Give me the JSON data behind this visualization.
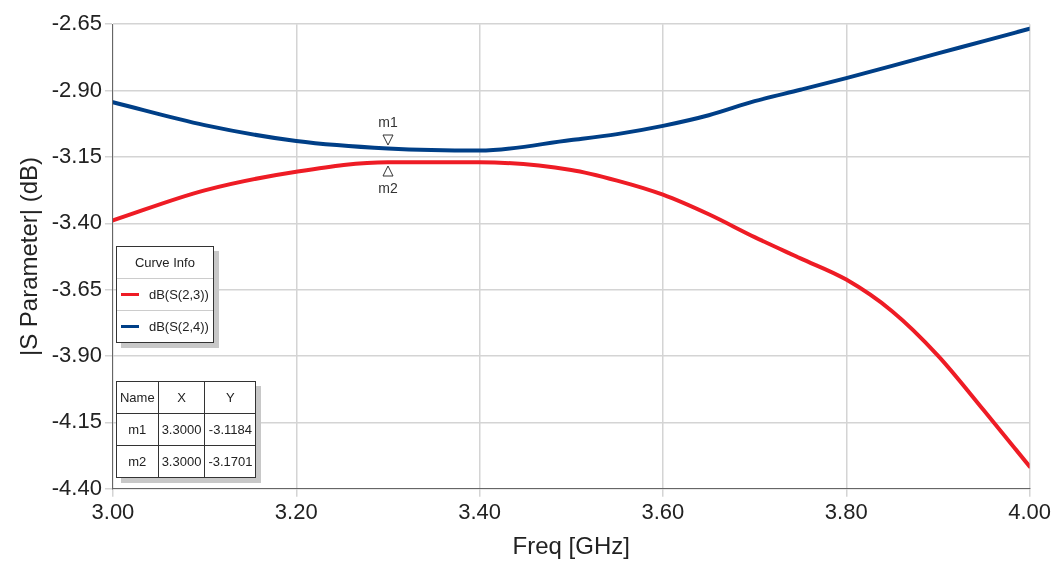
{
  "chart_data": {
    "type": "line",
    "xlabel": "Freq [GHz]",
    "ylabel": "|S Parameter| (dB)",
    "legend_title": "Curve Info",
    "legend": "left",
    "grid": true,
    "marker": "none",
    "line_style": "solid",
    "xlim": [
      3.0,
      4.0
    ],
    "xticks": [
      {
        "value": 3.0,
        "label": "3.00"
      },
      {
        "value": 3.2,
        "label": "3.20"
      },
      {
        "value": 3.4,
        "label": "3.40"
      },
      {
        "value": 3.6,
        "label": "3.60"
      },
      {
        "value": 3.8,
        "label": "3.80"
      },
      {
        "value": 4.0,
        "label": "4.00"
      }
    ],
    "ylim": [
      -4.4,
      -2.65
    ],
    "yticks": [
      -2.65,
      {
        "value": -2.9,
        "label": "-2.90"
      },
      -3.15,
      {
        "value": -3.4,
        "label": "-3.40"
      },
      -3.65,
      {
        "value": -3.9,
        "label": "-3.90"
      },
      -4.15,
      {
        "value": -4.4,
        "label": "-4.40"
      }
    ],
    "x": [
      3.0,
      3.1,
      3.2,
      3.3,
      3.4,
      3.5,
      3.55,
      3.6,
      3.65,
      3.7,
      3.75,
      3.8,
      3.85,
      3.9,
      3.95,
      4.0
    ],
    "series": [
      {
        "name": "dB(S(2,3))",
        "color": "#ee1c25",
        "values": [
          -3.389,
          -3.276,
          -3.206,
          -3.17,
          -3.17,
          -3.199,
          -3.239,
          -3.292,
          -3.366,
          -3.452,
          -3.532,
          -3.612,
          -3.731,
          -3.898,
          -4.104,
          -4.316
        ]
      },
      {
        "name": "dB(S(2,4))",
        "color": "#003f87",
        "values": [
          -2.944,
          -3.03,
          -3.09,
          -3.118,
          -3.126,
          -3.086,
          -3.064,
          -3.033,
          -2.993,
          -2.94,
          -2.897,
          -2.853,
          -2.807,
          -2.76,
          -2.714,
          -2.667
        ]
      }
    ],
    "annotations": [
      {
        "text": "m1",
        "x": 3.3,
        "y": -3.1184
      },
      {
        "text": "m2",
        "x": 3.3,
        "y": -3.1701
      },
      "Name",
      "X",
      "Y",
      "m1",
      "3.3000",
      "-3.1184",
      "m2",
      "3.3000",
      "-3.1701"
    ]
  }
}
